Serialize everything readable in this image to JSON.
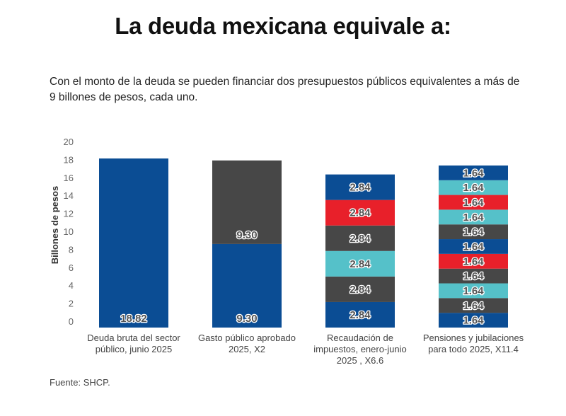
{
  "title": "La deuda mexicana equivale a:",
  "subtitle": "Con el monto de la deuda se pueden financiar dos presupuestos públicos equivalentes a más de 9 billones de pesos, cada uno.",
  "source": "Fuente: SHCP.",
  "colors": {
    "blue": "#0b4d94",
    "dark": "#474747",
    "cyan": "#55c1c9",
    "red": "#e8202a"
  },
  "chart_data": {
    "type": "bar",
    "stacked": true,
    "title": "La deuda mexicana equivale a:",
    "xlabel": "",
    "ylabel": "Billones de pesos",
    "ylim": [
      0,
      20
    ],
    "yticks": [
      0,
      2,
      4,
      6,
      8,
      10,
      12,
      14,
      16,
      18,
      20
    ],
    "grid": false,
    "legend": "none",
    "categories": [
      [
        "Deuda bruta del sector",
        "público, junio 2025"
      ],
      [
        "Gasto público aprobado",
        "2025, X2"
      ],
      [
        "Recaudación de",
        "impuestos, enero-junio",
        "2025 , X6.6"
      ],
      [
        "Pensiones y jubilaciones",
        "para todo 2025, X11.4"
      ]
    ],
    "bars": [
      {
        "segments": [
          {
            "value": 18.82,
            "label": "18.82",
            "color": "blue"
          }
        ]
      },
      {
        "segments": [
          {
            "value": 9.3,
            "label": "9.30",
            "color": "blue"
          },
          {
            "value": 9.3,
            "label": "9.30",
            "color": "dark"
          }
        ]
      },
      {
        "segments": [
          {
            "value": 2.84,
            "label": "2.84",
            "color": "blue"
          },
          {
            "value": 2.84,
            "label": "2.84",
            "color": "dark"
          },
          {
            "value": 2.84,
            "label": "2.84",
            "color": "cyan"
          },
          {
            "value": 2.84,
            "label": "2.84",
            "color": "dark"
          },
          {
            "value": 2.84,
            "label": "2.84",
            "color": "red"
          },
          {
            "value": 2.84,
            "label": "2.84",
            "color": "blue"
          }
        ]
      },
      {
        "segments": [
          {
            "value": 1.64,
            "label": "1.64",
            "color": "blue"
          },
          {
            "value": 1.64,
            "label": "1.64",
            "color": "dark"
          },
          {
            "value": 1.64,
            "label": "1.64",
            "color": "cyan"
          },
          {
            "value": 1.64,
            "label": "1.64",
            "color": "dark"
          },
          {
            "value": 1.64,
            "label": "1.64",
            "color": "red"
          },
          {
            "value": 1.64,
            "label": "1.64",
            "color": "blue"
          },
          {
            "value": 1.64,
            "label": "1.64",
            "color": "dark"
          },
          {
            "value": 1.64,
            "label": "1.64",
            "color": "cyan"
          },
          {
            "value": 1.64,
            "label": "1.64",
            "color": "red"
          },
          {
            "value": 1.64,
            "label": "1.64",
            "color": "cyan"
          },
          {
            "value": 1.64,
            "label": "1.64",
            "color": "blue"
          }
        ]
      }
    ]
  }
}
